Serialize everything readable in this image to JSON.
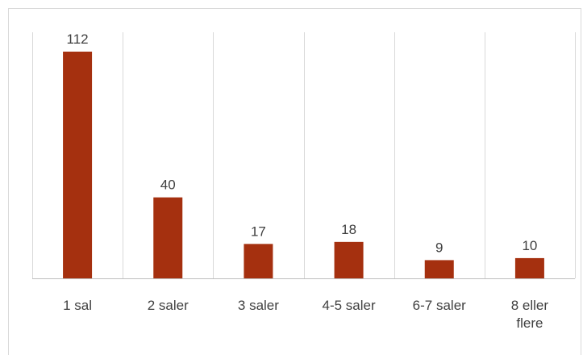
{
  "chart_data": {
    "type": "bar",
    "categories": [
      "1 sal",
      "2 saler",
      "3 saler",
      "4-5 saler",
      "6-7 saler",
      "8 eller flere"
    ],
    "values": [
      112,
      40,
      17,
      18,
      9,
      10
    ],
    "data_labels": [
      "112",
      "40",
      "17",
      "18",
      "9",
      "10"
    ],
    "title": "",
    "xlabel": "",
    "ylabel": "",
    "ylim": [
      0,
      125
    ],
    "grid": "vertical category separators",
    "legend": "none",
    "colors": {
      "bar": "#a5300f",
      "text": "#404040",
      "grid": "#d9d9d9",
      "axis": "#bfbfbf"
    }
  }
}
